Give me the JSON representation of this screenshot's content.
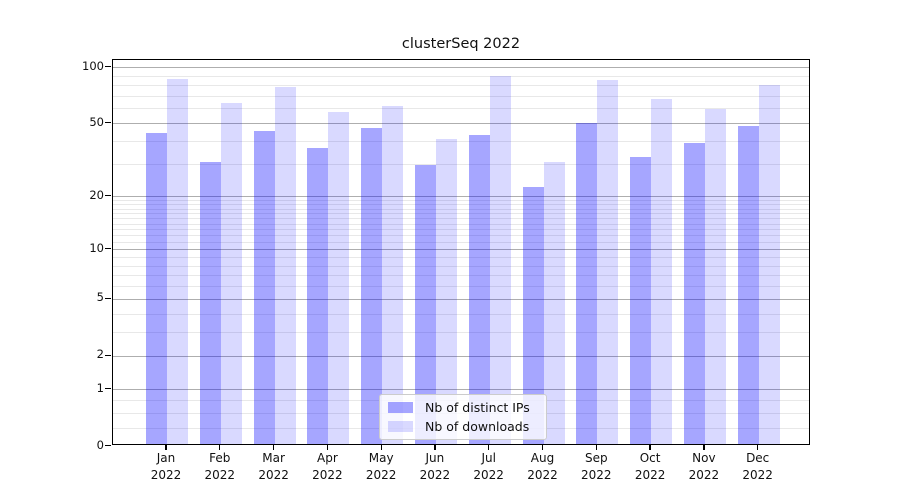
{
  "chart_data": {
    "type": "bar",
    "title": "clusterSeq 2022",
    "categories": [
      "Jan",
      "Feb",
      "Mar",
      "Apr",
      "May",
      "Jun",
      "Jul",
      "Aug",
      "Sep",
      "Oct",
      "Nov",
      "Dec"
    ],
    "x_year_label": "2022",
    "series": [
      {
        "name": "Nb of distinct IPs",
        "color": "rgba(0,0,255,0.35)",
        "values": [
          43,
          30,
          44,
          36,
          46,
          29,
          42,
          22,
          49,
          32,
          38,
          47
        ]
      },
      {
        "name": "Nb of downloads",
        "color": "rgba(0,0,255,0.15)",
        "values": [
          84,
          63,
          76,
          56,
          60,
          40,
          87,
          30,
          83,
          66,
          58,
          78
        ]
      }
    ],
    "y_axis": {
      "scale": "log1p",
      "major_ticks": [
        100,
        50,
        20,
        10,
        5,
        2,
        1,
        0
      ],
      "minor_ticks": [
        0.25,
        0.5,
        0.75,
        3,
        4,
        6,
        7,
        8,
        9,
        11,
        12,
        13,
        14,
        15,
        16,
        17,
        18,
        19,
        30,
        40,
        60,
        70,
        80,
        90
      ],
      "ylim": [
        0,
        109
      ]
    },
    "legend": {
      "position": "lower center"
    },
    "grid": "on"
  }
}
